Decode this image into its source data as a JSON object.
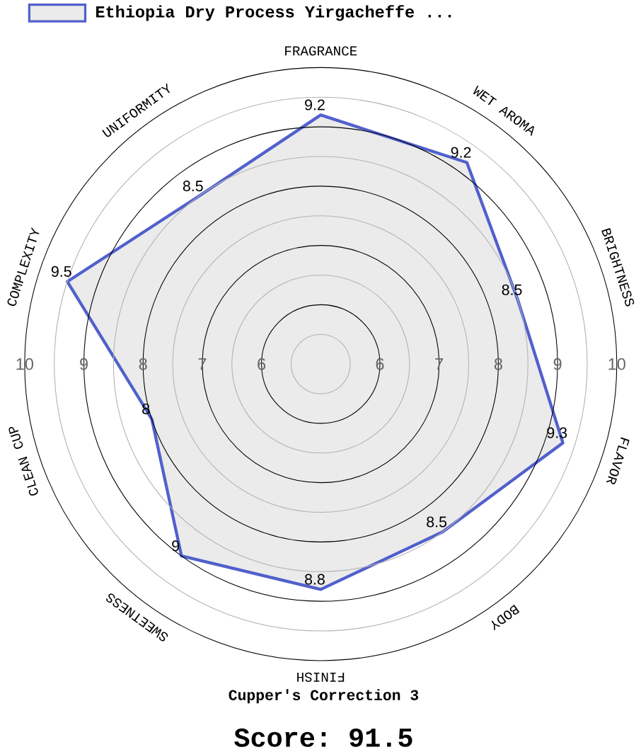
{
  "chart_data": {
    "type": "radar",
    "categories": [
      "FRAGRANCE",
      "WET AROMA",
      "BRIGHTNESS",
      "FLAVOR",
      "BODY",
      "FINISH",
      "SWEETNESS",
      "CLEAN CUP",
      "COMPLEXITY",
      "UNIFORMITY"
    ],
    "series": [
      {
        "name": "Ethiopia Dry Process Yirgacheffe ...",
        "color": "#5060cc",
        "values": [
          9.2,
          9.2,
          8.5,
          9.3,
          8.5,
          8.8,
          9,
          8,
          9.5,
          8.5
        ]
      }
    ],
    "ylim": [
      5,
      10
    ],
    "yticks": [
      6,
      7,
      8,
      9,
      10,
      6,
      7,
      8,
      9,
      10
    ],
    "grid": true,
    "legend": "top",
    "data_labels": true,
    "annotations": [
      "Cupper's Correction 3",
      "Score: 91.5"
    ]
  }
}
